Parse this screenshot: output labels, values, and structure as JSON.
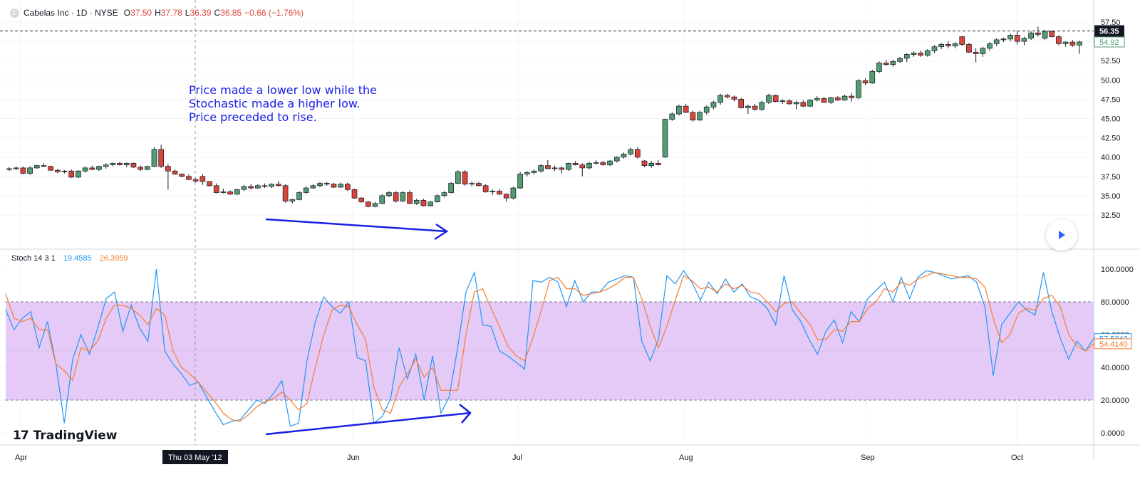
{
  "header": {
    "symbol": "Cabelas Inc · 1D · NYSE",
    "o_key": "O",
    "o_val": "37.50",
    "h_key": "H",
    "h_val": "37.78",
    "l_key": "L",
    "l_val": "36.39",
    "c_key": "C",
    "c_val": "36.85",
    "change": "−0.66 (−1.76%)"
  },
  "indicator": {
    "name": "Stoch 14 3 1",
    "k_value": "19.4585",
    "d_value": "26.3959"
  },
  "annotation": {
    "line1": "Price made a lower low while the",
    "line2": "Stochastic made a higher low.",
    "line3": "Price preceded to rise."
  },
  "branding": {
    "logo": "17",
    "name": "TradingView"
  },
  "crosshair_date": "Thu 03 May '12",
  "colors": {
    "up": "#539c71",
    "down": "#d9453a",
    "k_line": "#2196f3",
    "d_line": "#f57c30",
    "band": "#e5caf8",
    "arrow": "#1a20e6"
  },
  "chart_data": [
    {
      "type": "candlestick",
      "title": "Cabelas Inc · 1D · NYSE",
      "ylim": [
        30,
        58.5
      ],
      "y_ticks": [
        "57.50",
        "55.00",
        "52.50",
        "50.00",
        "47.50",
        "45.00",
        "42.50",
        "40.00",
        "37.50",
        "35.00",
        "32.50"
      ],
      "last_price_label": "56.35",
      "secondary_price_label": "54.92",
      "x_tick_labels": [
        "Apr",
        "Jun",
        "Jul",
        "Aug",
        "Sep",
        "Oct"
      ],
      "grid": true,
      "candles": [
        [
          38.4,
          38.7,
          38.2,
          38.5
        ],
        [
          38.5,
          38.8,
          38.3,
          38.6
        ],
        [
          38.6,
          38.8,
          37.8,
          37.9
        ],
        [
          37.9,
          38.8,
          37.7,
          38.6
        ],
        [
          38.6,
          39.0,
          38.5,
          38.9
        ],
        [
          38.9,
          39.2,
          38.7,
          38.8
        ],
        [
          38.8,
          38.9,
          38.2,
          38.3
        ],
        [
          38.3,
          38.5,
          37.9,
          38.1
        ],
        [
          38.1,
          38.3,
          37.9,
          38.2
        ],
        [
          38.2,
          38.4,
          37.3,
          37.4
        ],
        [
          37.4,
          38.3,
          37.3,
          38.2
        ],
        [
          38.2,
          38.8,
          38.0,
          38.6
        ],
        [
          38.6,
          38.9,
          38.3,
          38.4
        ],
        [
          38.4,
          38.9,
          38.2,
          38.8
        ],
        [
          38.8,
          39.2,
          38.5,
          39.0
        ],
        [
          39.0,
          39.3,
          38.8,
          39.2
        ],
        [
          39.2,
          39.4,
          38.9,
          39.0
        ],
        [
          39.0,
          39.3,
          38.7,
          39.2
        ],
        [
          39.2,
          39.3,
          38.6,
          38.7
        ],
        [
          38.7,
          38.9,
          38.2,
          38.4
        ],
        [
          38.4,
          38.9,
          38.3,
          38.8
        ],
        [
          38.8,
          41.3,
          38.7,
          41.0
        ],
        [
          41.0,
          41.6,
          38.6,
          38.8
        ],
        [
          38.8,
          39.1,
          35.8,
          38.2
        ],
        [
          38.2,
          38.4,
          37.7,
          37.8
        ],
        [
          37.8,
          37.9,
          37.4,
          37.5
        ],
        [
          37.5,
          37.8,
          37.0,
          37.1
        ],
        [
          37.1,
          37.3,
          36.7,
          36.9
        ],
        [
          37.5,
          37.8,
          36.4,
          36.85
        ],
        [
          36.85,
          36.9,
          36.2,
          36.3
        ],
        [
          36.3,
          36.6,
          35.3,
          35.4
        ],
        [
          35.4,
          35.9,
          35.3,
          35.5
        ],
        [
          35.5,
          35.7,
          35.1,
          35.2
        ],
        [
          35.2,
          35.9,
          35.1,
          35.8
        ],
        [
          35.8,
          36.4,
          35.6,
          36.2
        ],
        [
          36.2,
          36.5,
          35.8,
          36.0
        ],
        [
          36.0,
          36.5,
          35.9,
          36.3
        ],
        [
          36.3,
          36.6,
          36.0,
          36.2
        ],
        [
          36.2,
          36.6,
          36.0,
          36.5
        ],
        [
          36.5,
          36.9,
          36.2,
          36.3
        ],
        [
          36.3,
          36.5,
          34.1,
          34.3
        ],
        [
          34.3,
          34.6,
          34.0,
          34.5
        ],
        [
          34.5,
          35.6,
          34.4,
          35.4
        ],
        [
          35.4,
          36.2,
          35.2,
          36.0
        ],
        [
          36.0,
          36.5,
          35.9,
          36.3
        ],
        [
          36.3,
          36.8,
          36.1,
          36.6
        ],
        [
          36.6,
          36.8,
          36.3,
          36.5
        ],
        [
          36.5,
          36.7,
          36.0,
          36.1
        ],
        [
          36.1,
          36.7,
          36.0,
          36.5
        ],
        [
          36.5,
          36.7,
          35.6,
          35.8
        ],
        [
          35.8,
          35.9,
          34.6,
          34.7
        ],
        [
          34.7,
          34.8,
          34.1,
          34.2
        ],
        [
          34.2,
          34.3,
          33.5,
          33.6
        ],
        [
          33.6,
          34.2,
          33.5,
          34.0
        ],
        [
          34.0,
          35.2,
          33.9,
          35.0
        ],
        [
          35.0,
          35.6,
          34.8,
          35.4
        ],
        [
          35.4,
          35.6,
          34.1,
          34.3
        ],
        [
          34.3,
          35.6,
          34.2,
          35.4
        ],
        [
          35.4,
          35.7,
          33.9,
          34.0
        ],
        [
          34.0,
          34.6,
          33.8,
          34.4
        ],
        [
          34.4,
          34.6,
          33.6,
          33.7
        ],
        [
          33.7,
          34.3,
          33.6,
          34.2
        ],
        [
          34.2,
          35.2,
          34.1,
          35.0
        ],
        [
          35.0,
          35.6,
          34.8,
          35.4
        ],
        [
          35.4,
          36.8,
          35.3,
          36.6
        ],
        [
          36.6,
          38.3,
          36.5,
          38.1
        ],
        [
          38.1,
          38.3,
          36.3,
          36.5
        ],
        [
          36.5,
          36.9,
          36.2,
          36.6
        ],
        [
          36.6,
          36.8,
          36.2,
          36.3
        ],
        [
          36.3,
          36.5,
          35.4,
          35.5
        ],
        [
          35.5,
          35.8,
          35.1,
          35.6
        ],
        [
          35.6,
          35.9,
          35.1,
          35.2
        ],
        [
          35.2,
          35.3,
          34.2,
          34.7
        ],
        [
          34.7,
          36.2,
          34.5,
          36.0
        ],
        [
          36.0,
          38.1,
          35.9,
          37.8
        ],
        [
          37.8,
          38.2,
          37.5,
          38.0
        ],
        [
          38.0,
          38.4,
          37.7,
          38.2
        ],
        [
          38.2,
          39.1,
          38.0,
          38.9
        ],
        [
          38.9,
          39.6,
          38.6,
          38.5
        ],
        [
          38.5,
          38.9,
          38.2,
          38.6
        ],
        [
          38.6,
          38.8,
          37.9,
          38.4
        ],
        [
          38.4,
          39.3,
          38.2,
          39.2
        ],
        [
          39.2,
          39.5,
          38.9,
          39.0
        ],
        [
          39.0,
          39.2,
          37.5,
          38.6
        ],
        [
          38.6,
          39.4,
          38.4,
          39.2
        ],
        [
          39.2,
          39.6,
          39.0,
          39.3
        ],
        [
          39.3,
          39.5,
          38.9,
          39.0
        ],
        [
          39.0,
          39.6,
          38.8,
          39.5
        ],
        [
          39.5,
          40.1,
          39.3,
          40.0
        ],
        [
          40.0,
          40.6,
          39.8,
          40.4
        ],
        [
          40.4,
          41.2,
          40.2,
          41.0
        ],
        [
          41.0,
          41.3,
          39.8,
          40.0
        ],
        [
          39.5,
          39.6,
          38.7,
          38.9
        ],
        [
          38.9,
          39.5,
          38.6,
          39.2
        ],
        [
          39.2,
          39.6,
          38.9,
          39.0
        ],
        [
          40.0,
          45.0,
          39.9,
          44.9
        ],
        [
          44.9,
          45.8,
          44.7,
          45.6
        ],
        [
          45.6,
          46.8,
          45.4,
          46.6
        ],
        [
          46.6,
          46.9,
          45.7,
          45.8
        ],
        [
          45.8,
          46.0,
          44.6,
          44.8
        ],
        [
          44.8,
          46.0,
          44.7,
          45.8
        ],
        [
          45.8,
          46.7,
          45.5,
          46.5
        ],
        [
          46.5,
          47.3,
          46.2,
          47.1
        ],
        [
          47.1,
          48.2,
          46.8,
          48.0
        ],
        [
          48.0,
          48.2,
          47.6,
          47.8
        ],
        [
          47.8,
          48.0,
          47.2,
          47.5
        ],
        [
          47.5,
          47.7,
          46.3,
          46.4
        ],
        [
          46.4,
          46.8,
          45.6,
          46.6
        ],
        [
          46.6,
          46.9,
          46.0,
          46.2
        ],
        [
          46.2,
          47.3,
          46.0,
          47.1
        ],
        [
          47.1,
          48.2,
          46.9,
          48.0
        ],
        [
          48.0,
          48.1,
          47.1,
          47.2
        ],
        [
          47.2,
          47.5,
          46.9,
          47.3
        ],
        [
          47.3,
          47.5,
          46.8,
          46.9
        ],
        [
          46.9,
          47.3,
          46.2,
          47.1
        ],
        [
          47.1,
          47.4,
          46.5,
          46.6
        ],
        [
          46.6,
          47.5,
          46.5,
          47.4
        ],
        [
          47.4,
          47.9,
          47.2,
          47.6
        ],
        [
          47.6,
          47.8,
          47.0,
          47.1
        ],
        [
          47.1,
          47.8,
          46.9,
          47.7
        ],
        [
          47.7,
          47.9,
          47.3,
          47.4
        ],
        [
          47.4,
          48.1,
          47.3,
          47.9
        ],
        [
          47.9,
          48.3,
          47.2,
          47.7
        ],
        [
          47.7,
          50.1,
          47.5,
          49.9
        ],
        [
          49.9,
          50.2,
          49.3,
          49.6
        ],
        [
          49.6,
          51.3,
          49.5,
          51.1
        ],
        [
          51.1,
          52.4,
          50.9,
          52.2
        ],
        [
          52.2,
          52.6,
          51.8,
          52.0
        ],
        [
          52.0,
          52.6,
          51.7,
          52.4
        ],
        [
          52.4,
          53.0,
          52.2,
          52.8
        ],
        [
          52.8,
          53.5,
          52.3,
          53.3
        ],
        [
          53.3,
          53.7,
          53.0,
          53.5
        ],
        [
          53.5,
          53.8,
          53.0,
          53.2
        ],
        [
          53.2,
          54.0,
          53.0,
          53.8
        ],
        [
          53.8,
          54.5,
          53.5,
          54.3
        ],
        [
          54.3,
          54.8,
          54.0,
          54.6
        ],
        [
          54.6,
          55.0,
          54.1,
          54.4
        ],
        [
          54.4,
          54.9,
          54.1,
          54.7
        ],
        [
          55.6,
          55.7,
          54.4,
          54.6
        ],
        [
          54.6,
          54.8,
          53.5,
          53.6
        ],
        [
          53.6,
          54.1,
          52.3,
          53.4
        ],
        [
          53.4,
          54.3,
          53.0,
          54.1
        ],
        [
          54.1,
          54.9,
          53.8,
          54.7
        ],
        [
          54.7,
          55.4,
          54.4,
          55.2
        ],
        [
          55.2,
          55.5,
          54.9,
          55.3
        ],
        [
          55.3,
          56.0,
          55.0,
          55.8
        ],
        [
          55.8,
          56.4,
          54.6,
          55.0
        ],
        [
          55.0,
          55.6,
          54.5,
          55.4
        ],
        [
          55.4,
          56.3,
          55.2,
          56.1
        ],
        [
          56.1,
          56.9,
          55.6,
          55.9
        ],
        [
          55.4,
          56.5,
          55.2,
          56.3
        ],
        [
          56.3,
          56.4,
          55.5,
          55.6
        ],
        [
          55.6,
          55.8,
          54.5,
          54.7
        ],
        [
          54.7,
          55.0,
          54.3,
          54.9
        ],
        [
          54.9,
          55.2,
          54.3,
          54.5
        ],
        [
          54.5,
          55.1,
          53.4,
          54.92
        ]
      ]
    },
    {
      "type": "line",
      "title": "Stoch 14 3 1",
      "ylim": [
        -8,
        105
      ],
      "y_ticks": [
        "100.0000",
        "80.0000",
        "60.0000",
        "40.0000",
        "20.0000",
        "0.0000"
      ],
      "band": [
        20,
        80
      ],
      "last_labels": [
        "57.5342",
        "54.4140"
      ],
      "x_tick_labels": [
        "Apr",
        "Jun",
        "Jul",
        "Aug",
        "Sep",
        "Oct"
      ],
      "series": [
        {
          "name": "%K",
          "values": [
            75,
            63,
            70,
            74,
            52,
            68,
            42,
            6,
            45,
            60,
            48,
            64,
            82,
            86,
            62,
            78,
            64,
            56,
            100,
            50,
            42,
            36,
            29,
            31,
            22,
            13,
            5,
            7,
            8,
            14,
            20,
            18,
            24,
            32,
            4,
            6,
            44,
            68,
            83,
            77,
            73,
            80,
            46,
            44,
            6,
            10,
            21,
            52,
            33,
            48,
            20,
            47,
            12,
            22,
            52,
            86,
            98,
            66,
            65,
            50,
            47,
            43,
            39,
            93,
            92,
            95,
            92,
            77,
            93,
            80,
            86,
            86,
            92,
            94,
            96,
            95,
            56,
            44,
            57,
            96,
            91,
            99,
            92,
            81,
            92,
            85,
            94,
            86,
            91,
            83,
            81,
            76,
            66,
            96,
            75,
            68,
            57,
            48,
            62,
            69,
            55,
            74,
            68,
            82,
            87,
            92,
            80,
            95,
            82,
            95,
            99,
            98,
            96,
            94,
            95,
            96,
            92,
            77,
            35,
            66,
            73,
            80,
            75,
            72,
            98,
            74,
            58,
            45,
            56,
            50,
            57.53
          ]
        },
        {
          "name": "%D",
          "values": [
            85,
            70,
            68,
            70,
            63,
            63,
            42,
            38,
            32,
            52,
            50,
            56,
            70,
            78,
            78,
            76,
            72,
            66,
            76,
            72,
            50,
            40,
            36,
            31,
            25,
            19,
            12,
            8,
            7,
            11,
            16,
            19,
            21,
            25,
            20,
            14,
            18,
            40,
            60,
            75,
            78,
            77,
            66,
            57,
            28,
            14,
            12,
            28,
            36,
            45,
            34,
            40,
            26,
            26,
            26,
            60,
            86,
            88,
            76,
            65,
            53,
            47,
            44,
            58,
            75,
            93,
            95,
            88,
            88,
            84,
            85,
            86,
            88,
            91,
            95,
            95,
            82,
            65,
            52,
            65,
            81,
            96,
            93,
            88,
            89,
            86,
            91,
            88,
            90,
            86,
            85,
            80,
            74,
            79,
            80,
            73,
            67,
            57,
            57,
            63,
            62,
            68,
            68,
            76,
            80,
            88,
            86,
            92,
            90,
            94,
            96,
            98,
            97,
            96,
            95,
            95,
            94,
            89,
            70,
            55,
            60,
            73,
            76,
            75,
            82,
            84,
            77,
            60,
            53,
            50,
            54.41
          ]
        }
      ]
    }
  ]
}
